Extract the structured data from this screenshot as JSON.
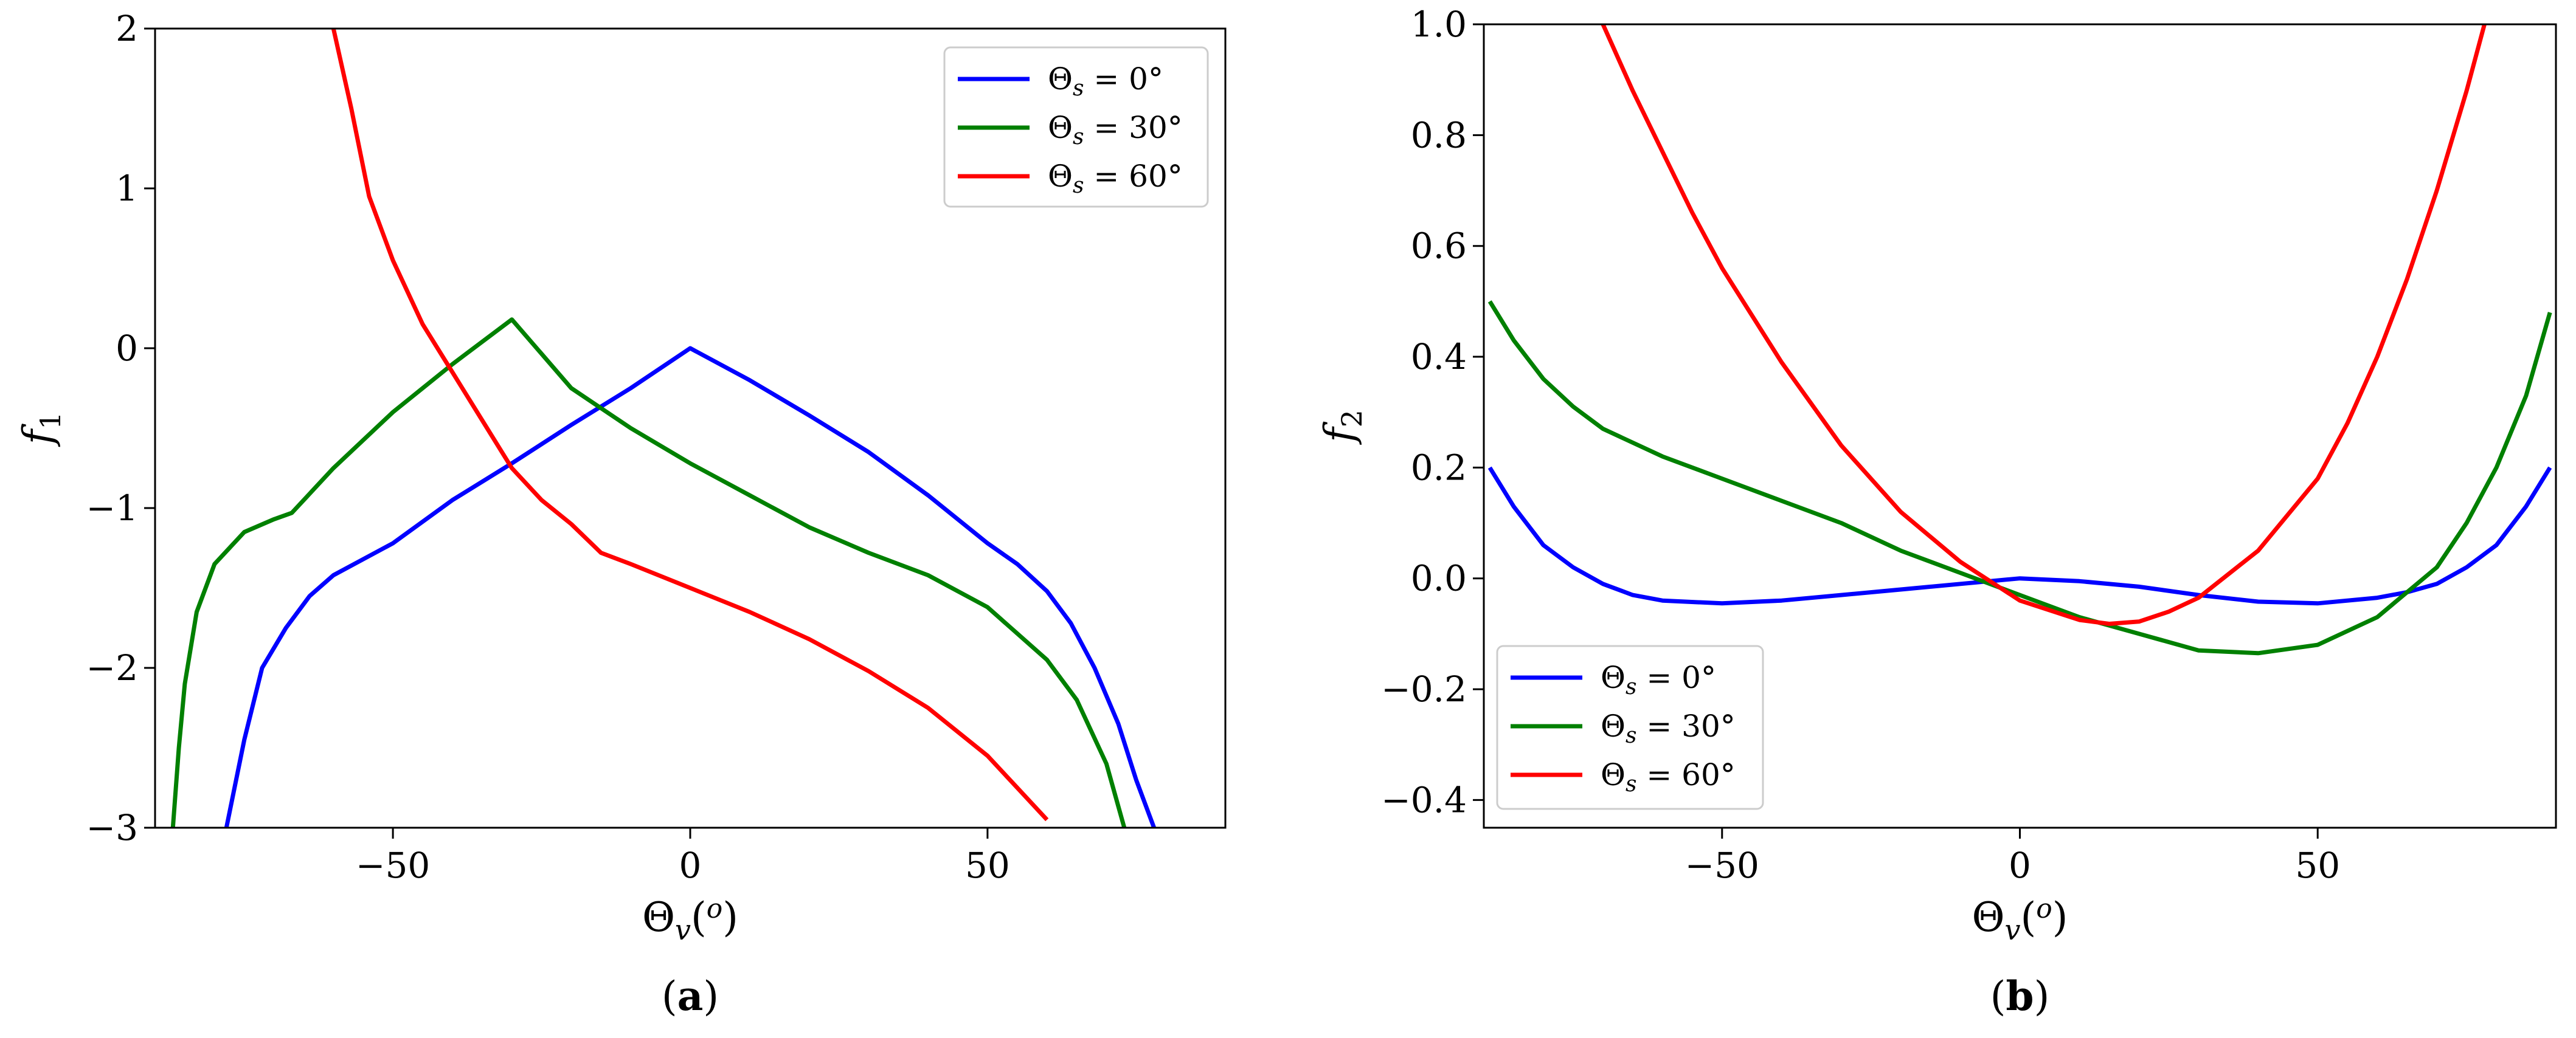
{
  "chart_data": [
    {
      "type": "line",
      "panel_label": "(a)",
      "xlabel": "Θv(o)",
      "ylabel": "f1",
      "xlim": [
        -90,
        90
      ],
      "ylim": [
        -3,
        2
      ],
      "xticks": [
        -50,
        0,
        50
      ],
      "xtick_labels": [
        "−50",
        "0",
        "50"
      ],
      "yticks": [
        -3,
        -2,
        -1,
        0,
        1,
        2
      ],
      "ytick_labels": [
        "−3",
        "−2",
        "−1",
        "0",
        "1",
        "2"
      ],
      "legend": "top-right",
      "series": [
        {
          "name": "Θs = 0°",
          "color": "#0000ff",
          "x": [
            -78,
            -75,
            -72,
            -68,
            -64,
            -60,
            -55,
            -50,
            -40,
            -30,
            -20,
            -10,
            0,
            10,
            20,
            30,
            40,
            50,
            55,
            60,
            64,
            68,
            72,
            75,
            78
          ],
          "y": [
            -3.0,
            -2.45,
            -2.0,
            -1.75,
            -1.55,
            -1.42,
            -1.32,
            -1.22,
            -0.95,
            -0.72,
            -0.48,
            -0.25,
            0.0,
            -0.2,
            -0.42,
            -0.65,
            -0.92,
            -1.22,
            -1.35,
            -1.52,
            -1.72,
            -2.0,
            -2.35,
            -2.7,
            -3.0
          ]
        },
        {
          "name": "Θs = 30°",
          "color": "#008000",
          "x": [
            -87,
            -86,
            -85,
            -83,
            -80,
            -75,
            -70,
            -67,
            -60,
            -50,
            -40,
            -30,
            -20,
            -10,
            0,
            10,
            20,
            30,
            40,
            50,
            60,
            65,
            70,
            73
          ],
          "y": [
            -3.0,
            -2.5,
            -2.1,
            -1.65,
            -1.35,
            -1.15,
            -1.07,
            -1.03,
            -0.75,
            -0.4,
            -0.1,
            0.18,
            -0.25,
            -0.5,
            -0.72,
            -0.92,
            -1.12,
            -1.28,
            -1.42,
            -1.62,
            -1.95,
            -2.2,
            -2.6,
            -3.0
          ]
        },
        {
          "name": "Θs = 60°",
          "color": "#ff0000",
          "x": [
            -60,
            -57,
            -54,
            -50,
            -45,
            -40,
            -35,
            -30,
            -25,
            -20,
            -15,
            -10,
            0,
            10,
            20,
            30,
            40,
            50,
            55,
            60
          ],
          "y": [
            2.0,
            1.5,
            0.95,
            0.55,
            0.15,
            -0.15,
            -0.45,
            -0.75,
            -0.95,
            -1.1,
            -1.28,
            -1.35,
            -1.5,
            -1.65,
            -1.82,
            -2.02,
            -2.25,
            -2.55,
            -2.75,
            -2.95
          ]
        }
      ]
    },
    {
      "type": "line",
      "panel_label": "(b)",
      "xlabel": "Θv(o)",
      "ylabel": "f2",
      "xlim": [
        -90,
        90
      ],
      "ylim": [
        -0.45,
        1.0
      ],
      "xticks": [
        -50,
        0,
        50
      ],
      "xtick_labels": [
        "−50",
        "0",
        "50"
      ],
      "yticks": [
        -0.4,
        -0.2,
        0.0,
        0.2,
        0.4,
        0.6,
        0.8,
        1.0
      ],
      "ytick_labels": [
        "−0.4",
        "−0.2",
        "0.0",
        "0.2",
        "0.4",
        "0.6",
        "0.8",
        "1.0"
      ],
      "legend": "lower-left",
      "series": [
        {
          "name": "Θs = 0°",
          "color": "#0000ff",
          "x": [
            -89,
            -85,
            -80,
            -75,
            -70,
            -65,
            -60,
            -50,
            -40,
            -30,
            -20,
            -10,
            0,
            10,
            20,
            30,
            40,
            50,
            60,
            65,
            70,
            75,
            80,
            85,
            89
          ],
          "y": [
            0.2,
            0.13,
            0.06,
            0.02,
            -0.01,
            -0.03,
            -0.04,
            -0.045,
            -0.04,
            -0.03,
            -0.02,
            -0.01,
            0.0,
            -0.005,
            -0.015,
            -0.03,
            -0.042,
            -0.045,
            -0.035,
            -0.025,
            -0.01,
            0.02,
            0.06,
            0.13,
            0.2
          ]
        },
        {
          "name": "Θs = 30°",
          "color": "#008000",
          "x": [
            -89,
            -85,
            -80,
            -75,
            -70,
            -60,
            -50,
            -40,
            -30,
            -20,
            -10,
            0,
            10,
            20,
            30,
            40,
            50,
            60,
            70,
            75,
            80,
            85,
            89
          ],
          "y": [
            0.5,
            0.43,
            0.36,
            0.31,
            0.27,
            0.22,
            0.18,
            0.14,
            0.1,
            0.05,
            0.01,
            -0.03,
            -0.07,
            -0.1,
            -0.13,
            -0.135,
            -0.12,
            -0.07,
            0.02,
            0.1,
            0.2,
            0.33,
            0.48
          ]
        },
        {
          "name": "Θs = 60°",
          "color": "#ff0000",
          "x": [
            -70,
            -65,
            -60,
            -55,
            -50,
            -40,
            -30,
            -20,
            -10,
            0,
            10,
            15,
            20,
            25,
            30,
            40,
            50,
            55,
            60,
            65,
            70,
            75,
            78
          ],
          "y": [
            1.0,
            0.88,
            0.77,
            0.66,
            0.56,
            0.39,
            0.24,
            0.12,
            0.03,
            -0.04,
            -0.075,
            -0.082,
            -0.078,
            -0.06,
            -0.035,
            0.05,
            0.18,
            0.28,
            0.4,
            0.54,
            0.7,
            0.88,
            1.0
          ]
        }
      ]
    }
  ]
}
